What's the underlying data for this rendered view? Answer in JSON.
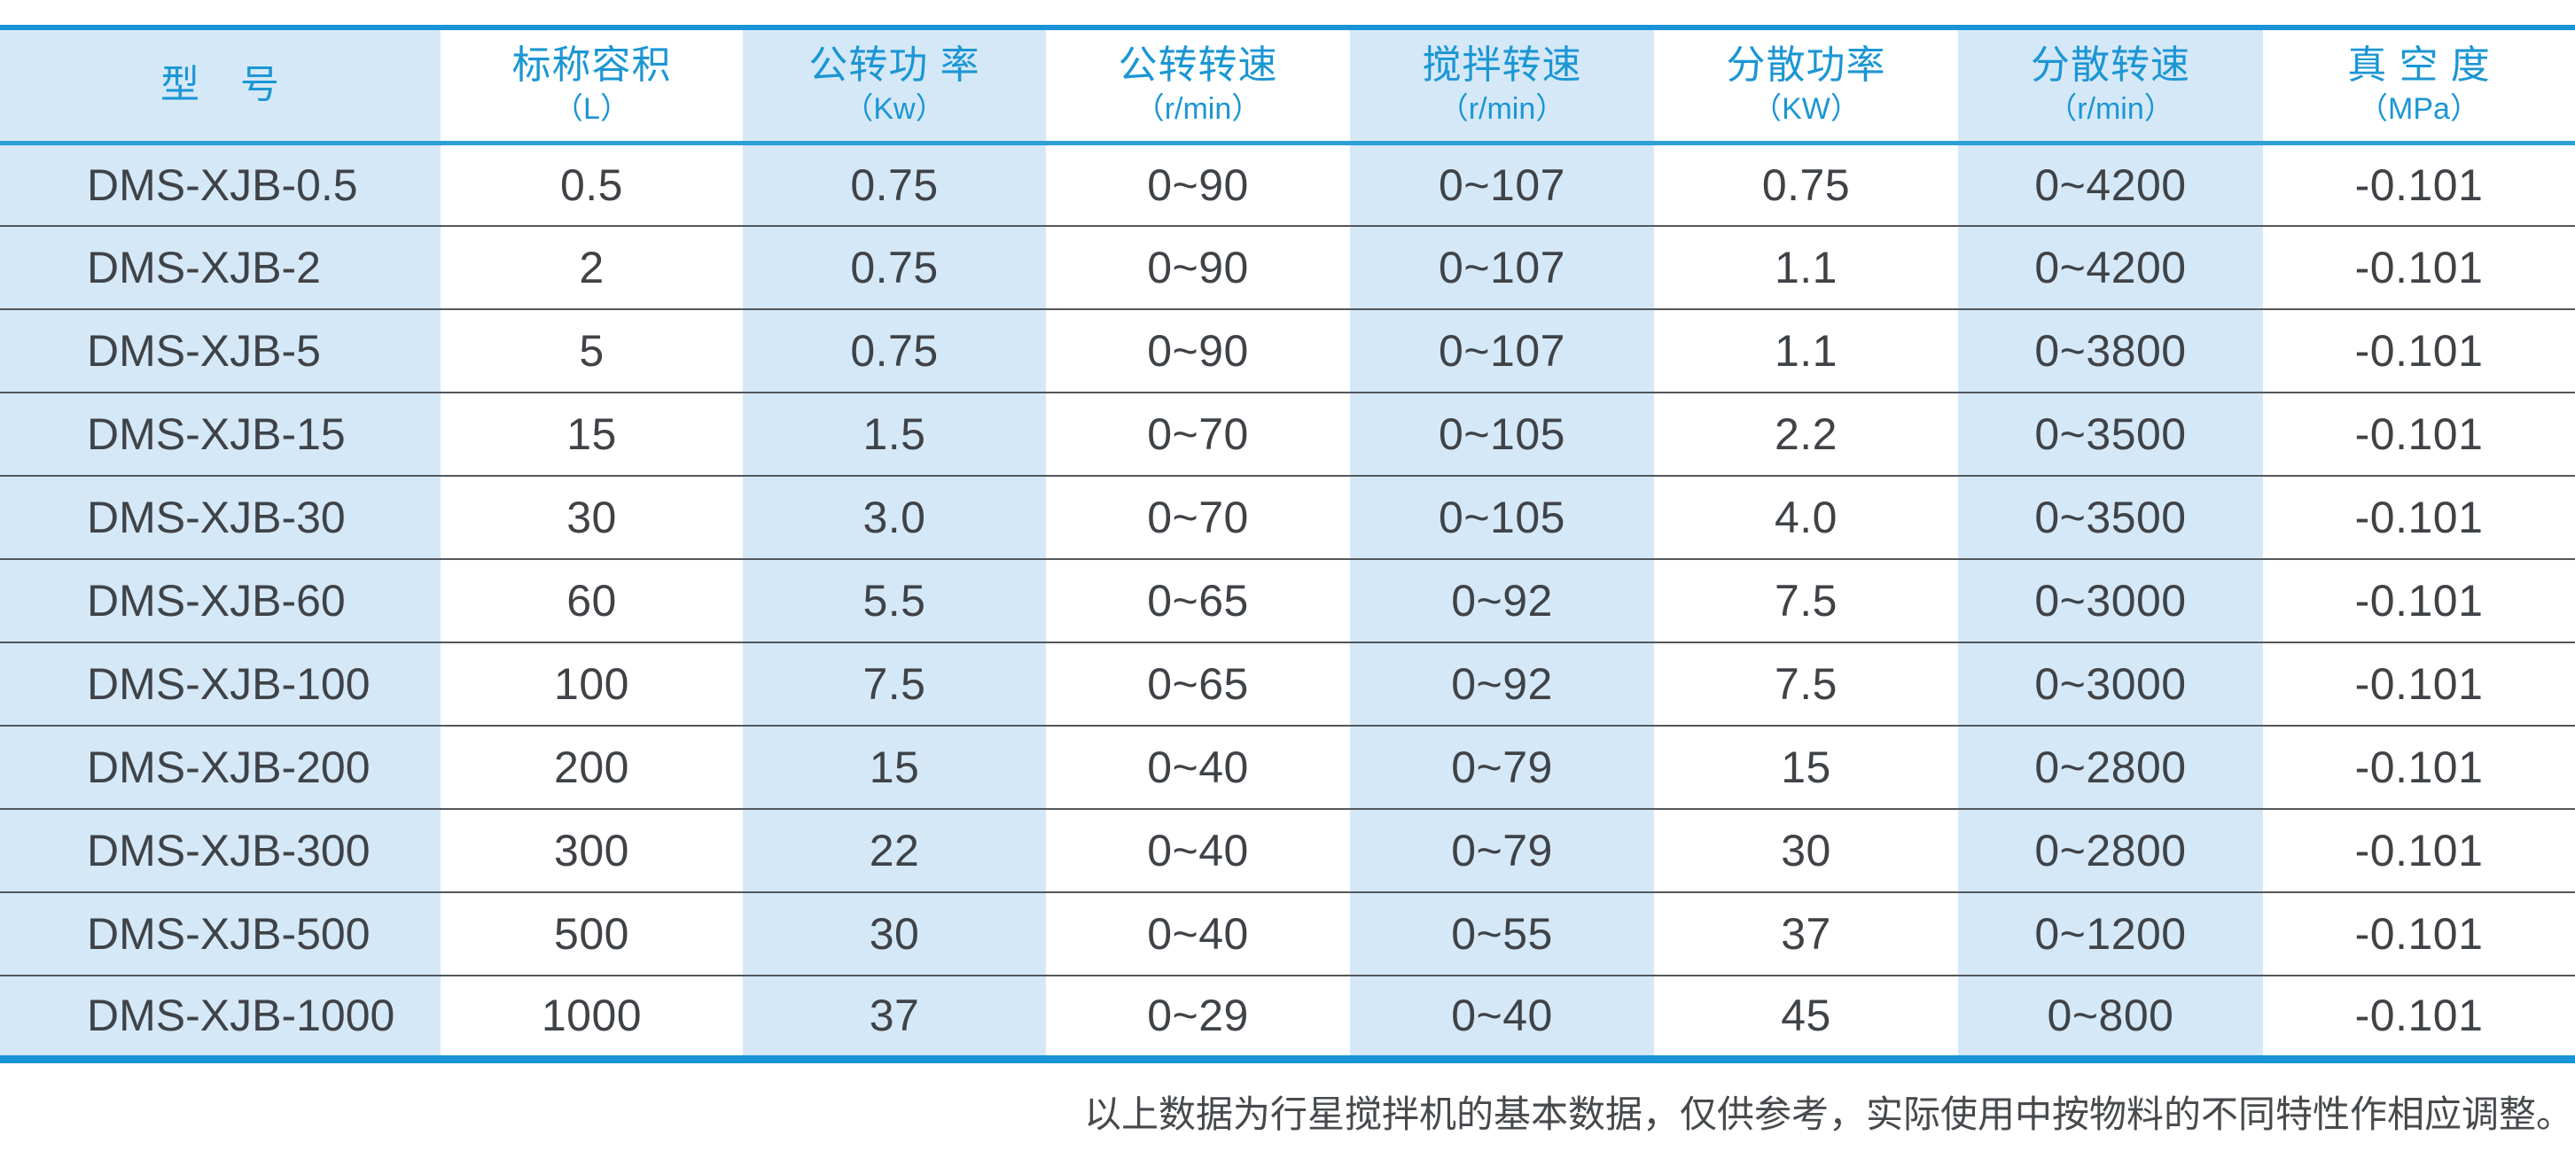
{
  "table": {
    "columns": [
      {
        "title": "型　号",
        "unit": ""
      },
      {
        "title": "标称容积",
        "unit": "（L）"
      },
      {
        "title": "公转功 率",
        "unit": "（Kw）"
      },
      {
        "title": "公转转速",
        "unit": "（r/min）"
      },
      {
        "title": "搅拌转速",
        "unit": "（r/min）"
      },
      {
        "title": "分散功率",
        "unit": "（KW）"
      },
      {
        "title": "分散转速",
        "unit": "（r/min）"
      },
      {
        "title": "真 空 度",
        "unit": "（MPa）"
      }
    ],
    "rows": [
      [
        "DMS-XJB-0.5",
        "0.5",
        "0.75",
        "0~90",
        "0~107",
        "0.75",
        "0~4200",
        "-0.101"
      ],
      [
        "DMS-XJB-2",
        "2",
        "0.75",
        "0~90",
        "0~107",
        "1.1",
        "0~4200",
        "-0.101"
      ],
      [
        "DMS-XJB-5",
        "5",
        "0.75",
        "0~90",
        "0~107",
        "1.1",
        "0~3800",
        "-0.101"
      ],
      [
        "DMS-XJB-15",
        "15",
        "1.5",
        "0~70",
        "0~105",
        "2.2",
        "0~3500",
        "-0.101"
      ],
      [
        "DMS-XJB-30",
        "30",
        "3.0",
        "0~70",
        "0~105",
        "4.0",
        "0~3500",
        "-0.101"
      ],
      [
        "DMS-XJB-60",
        "60",
        "5.5",
        "0~65",
        "0~92",
        "7.5",
        "0~3000",
        "-0.101"
      ],
      [
        "DMS-XJB-100",
        "100",
        "7.5",
        "0~65",
        "0~92",
        "7.5",
        "0~3000",
        "-0.101"
      ],
      [
        "DMS-XJB-200",
        "200",
        "15",
        "0~40",
        "0~79",
        "15",
        "0~2800",
        "-0.101"
      ],
      [
        "DMS-XJB-300",
        "300",
        "22",
        "0~40",
        "0~79",
        "30",
        "0~2800",
        "-0.101"
      ],
      [
        "DMS-XJB-500",
        "500",
        "30",
        "0~40",
        "0~55",
        "37",
        "0~1200",
        "-0.101"
      ],
      [
        "DMS-XJB-1000",
        "1000",
        "37",
        "0~29",
        "0~40",
        "45",
        "0~800",
        "-0.101"
      ]
    ]
  },
  "footer": {
    "note": "以上数据为行星搅拌机的基本数据，仅供参考，实际使用中按物料的不同特性作相应调整。"
  },
  "colors": {
    "accent_blue": "#1793d6",
    "header_text": "#1b96d4",
    "cell_shade": "#d5e8f7",
    "row_divider": "#53575c",
    "body_text": "#3f4347",
    "note_text": "#474a4d"
  }
}
